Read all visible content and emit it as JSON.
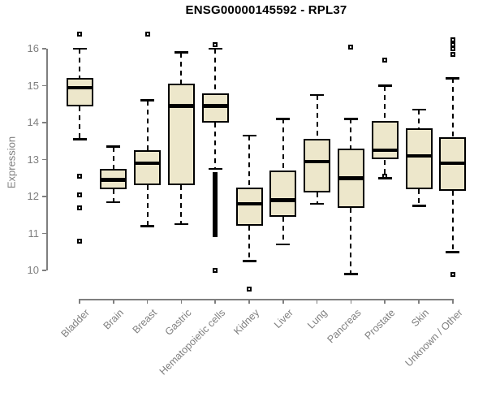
{
  "colors": {
    "box_fill": "#EDE7CB",
    "box_border": "#000000",
    "axis": "#7f7f7f",
    "title_color": "#000000",
    "background": "#ffffff"
  },
  "chart_data": {
    "type": "boxplot",
    "title": "ENSG00000145592 - RPL37",
    "xlabel": "",
    "ylabel": "Expression",
    "ylim": [
      10,
      16
    ],
    "yticks": [
      10,
      11,
      12,
      13,
      14,
      15,
      16
    ],
    "grid": false,
    "legend": null,
    "categories": [
      "Bladder",
      "Brain",
      "Breast",
      "Gastric",
      "Hematopoietic cells",
      "Kidney",
      "Liver",
      "Lung",
      "Pancreas",
      "Prostate",
      "Skin",
      "Unknown / Other"
    ],
    "series": [
      {
        "name": "Bladder",
        "whisker_low": 13.55,
        "q1": 14.45,
        "median": 14.95,
        "q3": 15.2,
        "whisker_high": 16.0,
        "outliers": [
          16.4,
          12.55,
          12.05,
          11.7,
          10.8
        ],
        "outlier_strip": null
      },
      {
        "name": "Brain",
        "whisker_low": 11.85,
        "q1": 12.2,
        "median": 12.45,
        "q3": 12.75,
        "whisker_high": 13.35,
        "outliers": [],
        "outlier_strip": null
      },
      {
        "name": "Breast",
        "whisker_low": 11.2,
        "q1": 12.3,
        "median": 12.9,
        "q3": 13.25,
        "whisker_high": 14.6,
        "outliers": [
          16.4
        ],
        "outlier_strip": null
      },
      {
        "name": "Gastric",
        "whisker_low": 11.25,
        "q1": 12.3,
        "median": 14.45,
        "q3": 15.05,
        "whisker_high": 15.9,
        "outliers": [],
        "outlier_strip": null
      },
      {
        "name": "Hematopoietic cells",
        "whisker_low": 12.75,
        "q1": 14.0,
        "median": 14.45,
        "q3": 14.8,
        "whisker_high": 16.0,
        "outliers": [
          16.1,
          10.0
        ],
        "outlier_strip": {
          "from": 10.9,
          "to": 12.65
        }
      },
      {
        "name": "Kidney",
        "whisker_low": 10.25,
        "q1": 11.2,
        "median": 11.8,
        "q3": 12.25,
        "whisker_high": 13.65,
        "outliers": [
          9.5
        ],
        "outlier_strip": null
      },
      {
        "name": "Liver",
        "whisker_low": 10.7,
        "q1": 11.45,
        "median": 11.9,
        "q3": 12.7,
        "whisker_high": 14.1,
        "outliers": [],
        "outlier_strip": null
      },
      {
        "name": "Lung",
        "whisker_low": 11.8,
        "q1": 12.1,
        "median": 12.95,
        "q3": 13.55,
        "whisker_high": 14.75,
        "outliers": [],
        "outlier_strip": null
      },
      {
        "name": "Pancreas",
        "whisker_low": 9.9,
        "q1": 11.7,
        "median": 12.5,
        "q3": 13.3,
        "whisker_high": 14.1,
        "outliers": [
          16.05
        ],
        "outlier_strip": null
      },
      {
        "name": "Prostate",
        "whisker_low": 12.5,
        "q1": 13.0,
        "median": 13.25,
        "q3": 14.05,
        "whisker_high": 15.0,
        "outliers": [
          15.7,
          12.55
        ],
        "outlier_strip": null
      },
      {
        "name": "Skin",
        "whisker_low": 11.75,
        "q1": 12.2,
        "median": 13.1,
        "q3": 13.85,
        "whisker_high": 14.35,
        "outliers": [],
        "outlier_strip": null
      },
      {
        "name": "Unknown / Other",
        "whisker_low": 10.5,
        "q1": 12.15,
        "median": 12.9,
        "q3": 13.6,
        "whisker_high": 15.2,
        "outliers": [
          16.25,
          16.1,
          16.0,
          15.85,
          9.9
        ],
        "outlier_strip": null
      }
    ]
  }
}
